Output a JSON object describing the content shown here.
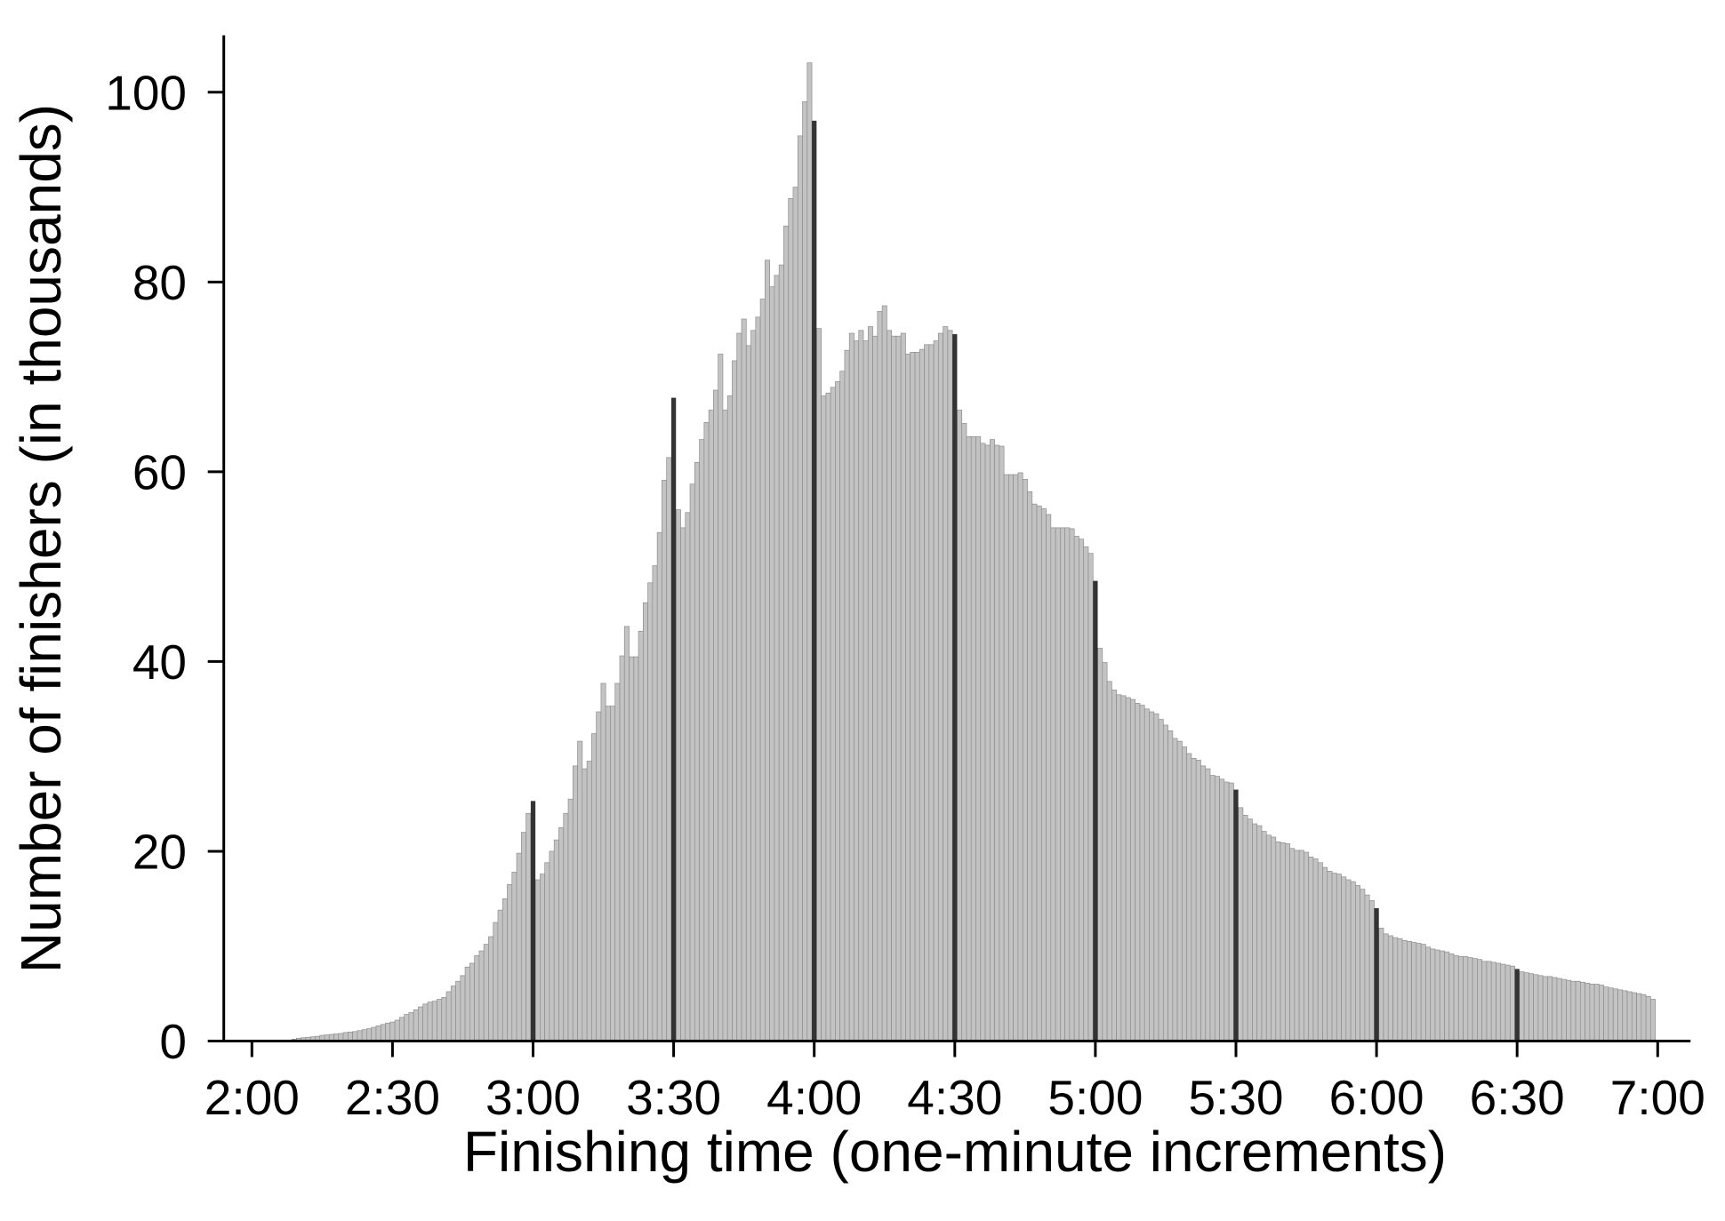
{
  "chart_data": {
    "type": "bar",
    "xlabel": "Finishing time (one-minute increments)",
    "ylabel": "Number of finishers (in thousands)",
    "x_tick_labels": [
      "2:00",
      "2:30",
      "3:00",
      "3:30",
      "4:00",
      "4:30",
      "5:00",
      "5:30",
      "6:00",
      "6:30",
      "7:00"
    ],
    "y_ticks": [
      0,
      20,
      40,
      60,
      80,
      100
    ],
    "xlim": [
      "1:54",
      "7:07"
    ],
    "ylim": [
      0,
      106
    ],
    "grid": false,
    "legend": "none",
    "colors": {
      "bar": "#c3c3c3",
      "bar_outline": "#8e8e8e",
      "highlight": "#333333",
      "axis": "#000000"
    },
    "highlighted_categories": [
      "3:00",
      "3:30",
      "4:00",
      "4:30",
      "5:00",
      "5:30",
      "6:00",
      "6:30"
    ],
    "categories": [
      "2:00",
      "2:01",
      "2:02",
      "2:03",
      "2:04",
      "2:05",
      "2:06",
      "2:07",
      "2:08",
      "2:09",
      "2:10",
      "2:11",
      "2:12",
      "2:13",
      "2:14",
      "2:15",
      "2:16",
      "2:17",
      "2:18",
      "2:19",
      "2:20",
      "2:21",
      "2:22",
      "2:23",
      "2:24",
      "2:25",
      "2:26",
      "2:27",
      "2:28",
      "2:29",
      "2:30",
      "2:31",
      "2:32",
      "2:33",
      "2:34",
      "2:35",
      "2:36",
      "2:37",
      "2:38",
      "2:39",
      "2:40",
      "2:41",
      "2:42",
      "2:43",
      "2:44",
      "2:45",
      "2:46",
      "2:47",
      "2:48",
      "2:49",
      "2:50",
      "2:51",
      "2:52",
      "2:53",
      "2:54",
      "2:55",
      "2:56",
      "2:57",
      "2:58",
      "2:59",
      "3:00",
      "3:01",
      "3:02",
      "3:03",
      "3:04",
      "3:05",
      "3:06",
      "3:07",
      "3:08",
      "3:09",
      "3:10",
      "3:11",
      "3:12",
      "3:13",
      "3:14",
      "3:15",
      "3:16",
      "3:17",
      "3:18",
      "3:19",
      "3:20",
      "3:21",
      "3:22",
      "3:23",
      "3:24",
      "3:25",
      "3:26",
      "3:27",
      "3:28",
      "3:29",
      "3:30",
      "3:31",
      "3:32",
      "3:33",
      "3:34",
      "3:35",
      "3:36",
      "3:37",
      "3:38",
      "3:39",
      "3:40",
      "3:41",
      "3:42",
      "3:43",
      "3:44",
      "3:45",
      "3:46",
      "3:47",
      "3:48",
      "3:49",
      "3:50",
      "3:51",
      "3:52",
      "3:53",
      "3:54",
      "3:55",
      "3:56",
      "3:57",
      "3:58",
      "3:59",
      "4:00",
      "4:01",
      "4:02",
      "4:03",
      "4:04",
      "4:05",
      "4:06",
      "4:07",
      "4:08",
      "4:09",
      "4:10",
      "4:11",
      "4:12",
      "4:13",
      "4:14",
      "4:15",
      "4:16",
      "4:17",
      "4:18",
      "4:19",
      "4:20",
      "4:21",
      "4:22",
      "4:23",
      "4:24",
      "4:25",
      "4:26",
      "4:27",
      "4:28",
      "4:29",
      "4:30",
      "4:31",
      "4:32",
      "4:33",
      "4:34",
      "4:35",
      "4:36",
      "4:37",
      "4:38",
      "4:39",
      "4:40",
      "4:41",
      "4:42",
      "4:43",
      "4:44",
      "4:45",
      "4:46",
      "4:47",
      "4:48",
      "4:49",
      "4:50",
      "4:51",
      "4:52",
      "4:53",
      "4:54",
      "4:55",
      "4:56",
      "4:57",
      "4:58",
      "4:59",
      "5:00",
      "5:01",
      "5:02",
      "5:03",
      "5:04",
      "5:05",
      "5:06",
      "5:07",
      "5:08",
      "5:09",
      "5:10",
      "5:11",
      "5:12",
      "5:13",
      "5:14",
      "5:15",
      "5:16",
      "5:17",
      "5:18",
      "5:19",
      "5:20",
      "5:21",
      "5:22",
      "5:23",
      "5:24",
      "5:25",
      "5:26",
      "5:27",
      "5:28",
      "5:29",
      "5:30",
      "5:31",
      "5:32",
      "5:33",
      "5:34",
      "5:35",
      "5:36",
      "5:37",
      "5:38",
      "5:39",
      "5:40",
      "5:41",
      "5:42",
      "5:43",
      "5:44",
      "5:45",
      "5:46",
      "5:47",
      "5:48",
      "5:49",
      "5:50",
      "5:51",
      "5:52",
      "5:53",
      "5:54",
      "5:55",
      "5:56",
      "5:57",
      "5:58",
      "5:59",
      "6:00",
      "6:01",
      "6:02",
      "6:03",
      "6:04",
      "6:05",
      "6:06",
      "6:07",
      "6:08",
      "6:09",
      "6:10",
      "6:11",
      "6:12",
      "6:13",
      "6:14",
      "6:15",
      "6:16",
      "6:17",
      "6:18",
      "6:19",
      "6:20",
      "6:21",
      "6:22",
      "6:23",
      "6:24",
      "6:25",
      "6:26",
      "6:27",
      "6:28",
      "6:29",
      "6:30",
      "6:31",
      "6:32",
      "6:33",
      "6:34",
      "6:35",
      "6:36",
      "6:37",
      "6:38",
      "6:39",
      "6:40",
      "6:41",
      "6:42",
      "6:43",
      "6:44",
      "6:45",
      "6:46",
      "6:47",
      "6:48",
      "6:49",
      "6:50",
      "6:51",
      "6:52",
      "6:53",
      "6:54",
      "6:55",
      "6:56",
      "6:57",
      "6:58",
      "6:59"
    ],
    "values": [
      0,
      0,
      0,
      0,
      0,
      0,
      0,
      0.1,
      0.1,
      0.2,
      0.3,
      0.35,
      0.4,
      0.45,
      0.5,
      0.6,
      0.65,
      0.7,
      0.75,
      0.8,
      0.9,
      0.95,
      1.0,
      1.1,
      1.2,
      1.3,
      1.45,
      1.6,
      1.75,
      1.9,
      2.0,
      2.2,
      2.5,
      2.8,
      3.0,
      3.3,
      3.6,
      3.9,
      4.1,
      4.2,
      4.4,
      4.6,
      5.2,
      5.8,
      6.3,
      6.9,
      7.8,
      8.2,
      9.0,
      9.5,
      10.2,
      11.0,
      12.5,
      13.8,
      15.0,
      16.5,
      17.8,
      19.8,
      22.0,
      24.0,
      25.3,
      17.0,
      17.6,
      18.8,
      20.0,
      21.2,
      22.5,
      24.0,
      25.5,
      29.0,
      31.6,
      28.7,
      29.5,
      32.4,
      34.7,
      37.7,
      35.3,
      35.3,
      37.7,
      40.6,
      43.7,
      40.5,
      40.5,
      43.2,
      46.2,
      48.3,
      50.1,
      53.6,
      59.1,
      61.5,
      67.8,
      56.0,
      54.1,
      55.7,
      58.7,
      61.0,
      63.4,
      65.2,
      66.5,
      68.6,
      72.4,
      66.5,
      68.0,
      71.7,
      74.6,
      76.1,
      73.3,
      74.9,
      76.3,
      78.2,
      82.3,
      79.5,
      80.7,
      81.8,
      85.9,
      88.8,
      90.0,
      95.4,
      99.0,
      103.1,
      97.0,
      75.1,
      68.0,
      68.3,
      68.9,
      69.5,
      70.6,
      72.8,
      74.6,
      73.8,
      74.9,
      73.8,
      75.3,
      74.3,
      76.9,
      77.5,
      74.9,
      74.3,
      74.3,
      74.6,
      72.4,
      72.6,
      72.6,
      72.9,
      73.4,
      73.4,
      73.8,
      74.6,
      75.3,
      74.9,
      74.5,
      66.5,
      65.1,
      63.7,
      63.7,
      63.7,
      63.0,
      62.8,
      63.4,
      62.8,
      62.7,
      59.7,
      59.7,
      59.7,
      59.9,
      59.2,
      57.9,
      56.6,
      56.4,
      56.1,
      55.5,
      54.1,
      54.1,
      54.1,
      54.1,
      54.0,
      53.2,
      52.9,
      52.1,
      51.4,
      48.5,
      41.4,
      39.9,
      37.9,
      37.0,
      36.5,
      36.4,
      36.2,
      36.0,
      35.6,
      35.4,
      35.0,
      34.7,
      34.5,
      33.9,
      33.3,
      32.7,
      31.9,
      31.6,
      31.0,
      30.3,
      29.8,
      29.6,
      29.0,
      28.7,
      28.0,
      27.9,
      27.6,
      27.3,
      27.2,
      26.5,
      24.6,
      23.8,
      23.4,
      22.9,
      22.7,
      22.1,
      21.7,
      21.5,
      21.0,
      20.9,
      20.8,
      20.3,
      20.1,
      20.1,
      19.9,
      19.4,
      19.2,
      18.8,
      18.3,
      17.9,
      17.7,
      17.6,
      17.3,
      17.0,
      16.8,
      16.4,
      16.0,
      15.4,
      14.8,
      14.0,
      11.9,
      11.3,
      11.1,
      10.9,
      10.8,
      10.6,
      10.5,
      10.4,
      10.3,
      10.2,
      9.9,
      9.7,
      9.6,
      9.5,
      9.4,
      9.2,
      9.0,
      8.9,
      8.9,
      8.8,
      8.7,
      8.6,
      8.4,
      8.4,
      8.3,
      8.2,
      8.1,
      8.0,
      7.9,
      7.6,
      7.3,
      7.2,
      7.1,
      7.0,
      6.9,
      6.8,
      6.8,
      6.7,
      6.6,
      6.5,
      6.4,
      6.3,
      6.3,
      6.2,
      6.1,
      6.0,
      6.0,
      5.9,
      5.7,
      5.6,
      5.5,
      5.4,
      5.3,
      5.2,
      5.1,
      5.0,
      4.9,
      4.7,
      4.4
    ]
  }
}
